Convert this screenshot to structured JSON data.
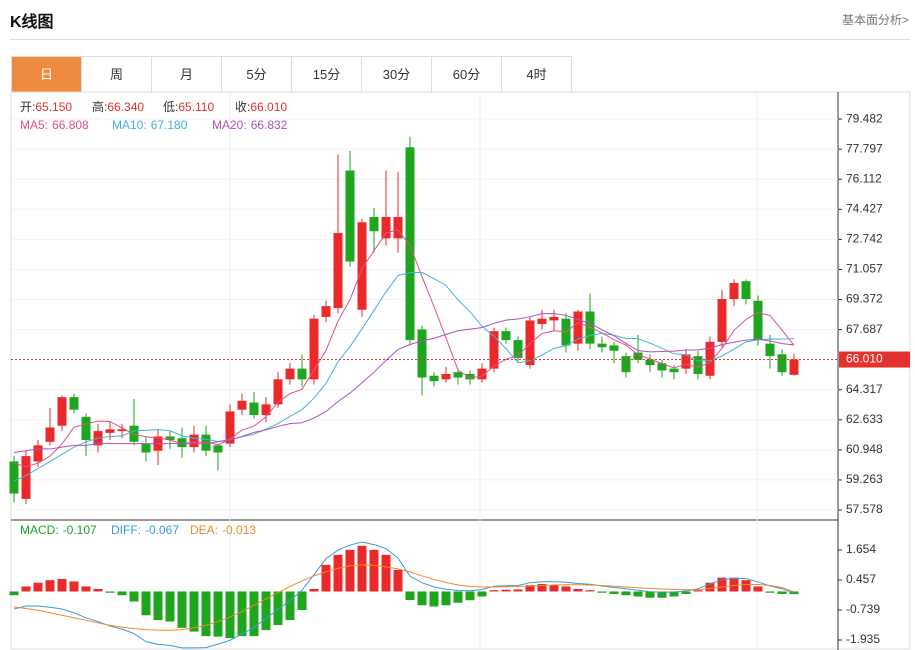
{
  "header": {
    "title": "K线图",
    "link": "基本面分析>"
  },
  "tabs": [
    {
      "label": "日",
      "active": true
    },
    {
      "label": "周",
      "active": false
    },
    {
      "label": "月",
      "active": false
    },
    {
      "label": "5分",
      "active": false
    },
    {
      "label": "15分",
      "active": false
    },
    {
      "label": "30分",
      "active": false
    },
    {
      "label": "60分",
      "active": false
    },
    {
      "label": "4时",
      "active": false
    }
  ],
  "chart_data": [
    {
      "type": "candlestick",
      "info": [
        {
          "name": "开:",
          "value": "65.150"
        },
        {
          "name": "高:",
          "value": "66.340"
        },
        {
          "name": "低:",
          "value": "65.110"
        },
        {
          "name": "收:",
          "value": "66.010"
        }
      ],
      "info_color": "#e3322e",
      "up_color": "#ea2a2a",
      "down_color": "#1fa61f",
      "open": [
        60.3,
        58.2,
        60.3,
        61.4,
        62.3,
        63.9,
        62.8,
        61.2,
        61.9,
        62.0,
        62.3,
        61.3,
        60.9,
        61.7,
        61.6,
        61.1,
        61.8,
        61.2,
        61.3,
        63.2,
        63.6,
        62.9,
        63.5,
        64.9,
        65.5,
        64.9,
        68.4,
        68.9,
        76.6,
        68.8,
        74.0,
        72.8,
        72.8,
        77.9,
        67.7,
        65.1,
        64.9,
        65.3,
        65.2,
        64.9,
        65.5,
        67.6,
        67.1,
        65.7,
        68.0,
        68.2,
        68.3,
        66.9,
        68.7,
        66.9,
        66.8,
        66.2,
        66.4,
        66.0,
        65.8,
        65.5,
        65.5,
        66.2,
        65.1,
        67.0,
        69.4,
        70.4,
        69.3,
        66.9,
        66.3,
        65.15
      ],
      "high": [
        60.6,
        60.9,
        61.5,
        63.3,
        64.0,
        64.1,
        63.0,
        62.4,
        62.5,
        62.4,
        63.8,
        61.7,
        62.1,
        62.0,
        62.2,
        62.3,
        62.3,
        61.3,
        63.5,
        64.1,
        64.2,
        63.9,
        65.3,
        65.8,
        66.3,
        68.5,
        69.3,
        77.5,
        77.7,
        73.9,
        74.5,
        76.6,
        76.5,
        78.5,
        67.9,
        65.3,
        65.6,
        65.5,
        65.4,
        65.8,
        67.8,
        67.8,
        67.3,
        68.4,
        68.8,
        68.8,
        68.6,
        68.8,
        69.7,
        67.3,
        67.0,
        66.4,
        67.4,
        66.3,
        66.0,
        65.7,
        66.6,
        66.5,
        67.3,
        69.9,
        70.5,
        70.5,
        69.6,
        67.4,
        66.6,
        66.34
      ],
      "low": [
        58.0,
        57.9,
        60.0,
        61.2,
        62.0,
        63.0,
        60.6,
        60.8,
        61.5,
        61.6,
        61.2,
        60.3,
        60.1,
        61.0,
        60.5,
        60.8,
        60.6,
        59.8,
        61.1,
        62.9,
        62.7,
        62.5,
        63.3,
        64.6,
        64.5,
        64.6,
        68.1,
        68.6,
        71.2,
        68.4,
        72.0,
        72.4,
        72.0,
        66.8,
        64.0,
        64.5,
        64.7,
        64.6,
        64.6,
        64.7,
        65.3,
        66.9,
        65.9,
        65.5,
        67.7,
        67.6,
        66.4,
        66.5,
        66.6,
        66.4,
        65.8,
        65.0,
        65.8,
        65.3,
        65.0,
        64.9,
        65.2,
        64.9,
        64.9,
        66.7,
        69.0,
        69.1,
        66.8,
        65.5,
        65.1,
        65.11
      ],
      "close": [
        58.5,
        60.6,
        61.2,
        62.2,
        63.9,
        63.2,
        61.5,
        62.0,
        62.1,
        62.1,
        61.4,
        60.8,
        61.7,
        61.5,
        61.1,
        61.8,
        60.9,
        60.8,
        63.1,
        63.7,
        62.9,
        63.5,
        64.9,
        65.5,
        64.9,
        68.3,
        69.0,
        73.1,
        71.5,
        73.7,
        73.2,
        74.0,
        74.0,
        67.1,
        65.0,
        64.8,
        65.2,
        65.0,
        64.9,
        65.5,
        67.6,
        67.1,
        66.1,
        68.2,
        68.3,
        68.4,
        66.8,
        68.7,
        66.9,
        66.7,
        66.5,
        65.3,
        66.0,
        65.7,
        65.4,
        65.3,
        66.3,
        65.2,
        67.0,
        69.4,
        70.3,
        69.4,
        67.1,
        66.2,
        65.3,
        66.01
      ],
      "series": [
        {
          "name": "MA5:",
          "label": "66.808",
          "color": "#e2508c",
          "values": [
            60.2,
            60.0,
            60.2,
            60.6,
            61.28,
            62.22,
            62.4,
            62.56,
            62.54,
            62.18,
            61.82,
            61.68,
            61.62,
            61.5,
            61.3,
            61.38,
            61.4,
            61.22,
            61.54,
            62.06,
            62.28,
            62.8,
            63.62,
            64.1,
            64.34,
            65.42,
            66.52,
            68.16,
            69.36,
            71.12,
            72.1,
            73.1,
            73.28,
            72.4,
            70.66,
            68.98,
            67.22,
            65.42,
            64.98,
            65.08,
            65.64,
            66.02,
            66.24,
            66.9,
            67.46,
            67.62,
            67.56,
            68.08,
            67.82,
            67.5,
            67.12,
            66.82,
            66.28,
            66.04,
            65.78,
            65.54,
            65.74,
            65.58,
            65.84,
            66.64,
            67.64,
            68.26,
            68.64,
            68.48,
            67.66,
            66.808
          ]
        },
        {
          "name": "MA10:",
          "label": "67.180",
          "color": "#3fb6d6",
          "values": [
            59.2,
            59.5,
            59.9,
            60.3,
            60.7,
            61.1,
            61.4,
            61.6,
            61.7,
            61.73,
            62.02,
            62.04,
            62.09,
            62.02,
            61.74,
            61.6,
            61.54,
            61.42,
            61.52,
            61.68,
            61.83,
            62.1,
            62.42,
            62.82,
            63.2,
            63.85,
            64.66,
            65.89,
            66.73,
            67.73,
            68.76,
            69.81,
            70.72,
            70.88,
            70.89,
            70.54,
            70.16,
            69.35,
            68.69,
            67.87,
            67.31,
            66.62,
            65.83,
            65.94,
            66.27,
            66.63,
            66.79,
            67.16,
            67.36,
            67.48,
            67.37,
            67.19,
            67.18,
            66.93,
            66.64,
            66.33,
            66.28,
            65.93,
            65.94,
            66.21,
            66.59,
            67.0,
            67.11,
            67.16,
            67.15,
            67.18
          ]
        },
        {
          "name": "MA20:",
          "label": "66.832",
          "color": "#b04fc6",
          "values": [
            60.8,
            60.9,
            61.0,
            61.0,
            61.1,
            61.2,
            61.2,
            61.3,
            61.3,
            61.3,
            61.3,
            61.3,
            61.3,
            61.3,
            61.3,
            61.3,
            61.3,
            61.4,
            61.5,
            61.7,
            61.93,
            62.07,
            62.26,
            62.42,
            62.47,
            62.73,
            63.1,
            63.66,
            64.13,
            64.71,
            65.3,
            65.96,
            66.57,
            66.85,
            67.05,
            67.2,
            67.41,
            67.62,
            67.71,
            67.8,
            68.04,
            68.22,
            68.28,
            68.41,
            68.58,
            68.59,
            68.48,
            68.26,
            68.03,
            67.68,
            67.34,
            66.91,
            66.51,
            66.44,
            66.46,
            66.48,
            66.54,
            66.55,
            66.65,
            66.85,
            66.98,
            67.1,
            67.15,
            67.05,
            66.9,
            66.832
          ]
        }
      ],
      "last_price": {
        "value": 66.01,
        "label": "66.010"
      },
      "ylim": [
        57.13,
        81.0
      ],
      "yticks": [
        79.482,
        77.797,
        76.112,
        74.427,
        72.742,
        71.057,
        69.372,
        67.687,
        64.317,
        62.633,
        60.948,
        59.263,
        57.578
      ],
      "grid": true
    },
    {
      "type": "macd",
      "up_color": "#ea2a2a",
      "down_color": "#1fa61f",
      "series": [
        {
          "name": "MACD:",
          "label": "-0.107",
          "color": "#1f9f33",
          "kind": "bar",
          "values": [
            -0.15,
            0.2,
            0.35,
            0.45,
            0.5,
            0.4,
            0.2,
            0.1,
            -0.05,
            -0.15,
            -0.4,
            -0.95,
            -1.14,
            -1.2,
            -1.45,
            -1.6,
            -1.78,
            -1.8,
            -1.86,
            -1.78,
            -1.78,
            -1.54,
            -1.34,
            -1.14,
            -0.74,
            0.1,
            1.06,
            1.46,
            1.66,
            1.82,
            1.66,
            1.46,
            0.86,
            -0.34,
            -0.55,
            -0.6,
            -0.55,
            -0.45,
            -0.35,
            -0.2,
            0.05,
            0.07,
            0.08,
            0.25,
            0.3,
            0.25,
            0.2,
            0.1,
            0.05,
            -0.05,
            -0.1,
            -0.15,
            -0.2,
            -0.25,
            -0.25,
            -0.2,
            -0.1,
            0.05,
            0.35,
            0.55,
            0.55,
            0.45,
            0.2,
            -0.05,
            -0.1,
            -0.107
          ]
        },
        {
          "name": "DIFF:",
          "label": "-0.067",
          "color": "#3a9ad9",
          "kind": "line",
          "values": [
            -0.7,
            -0.58,
            -0.58,
            -0.63,
            -0.7,
            -0.85,
            -1.05,
            -1.2,
            -1.38,
            -1.5,
            -1.68,
            -2.0,
            -2.11,
            -2.15,
            -2.25,
            -2.25,
            -2.24,
            -2.1,
            -1.95,
            -1.69,
            -1.44,
            -1.07,
            -0.72,
            -0.37,
            0.05,
            0.67,
            1.31,
            1.65,
            1.85,
            1.97,
            1.87,
            1.71,
            1.33,
            0.61,
            0.35,
            0.18,
            0.09,
            0.04,
            0.03,
            0.08,
            0.21,
            0.23,
            0.24,
            0.35,
            0.39,
            0.39,
            0.37,
            0.32,
            0.29,
            0.22,
            0.16,
            0.11,
            0.05,
            -0.01,
            -0.03,
            -0.02,
            0.02,
            0.11,
            0.3,
            0.46,
            0.52,
            0.51,
            0.38,
            0.22,
            0.11,
            -0.067
          ]
        },
        {
          "name": "DEA:",
          "label": "-0.013",
          "color": "#f08a24",
          "kind": "line",
          "values": [
            -0.62,
            -0.68,
            -0.75,
            -0.85,
            -0.95,
            -1.05,
            -1.15,
            -1.25,
            -1.35,
            -1.42,
            -1.48,
            -1.52,
            -1.54,
            -1.55,
            -1.52,
            -1.45,
            -1.35,
            -1.2,
            -1.02,
            -0.8,
            -0.55,
            -0.3,
            -0.05,
            0.2,
            0.42,
            0.62,
            0.78,
            0.92,
            1.02,
            1.06,
            1.04,
            0.98,
            0.9,
            0.78,
            0.62,
            0.48,
            0.36,
            0.26,
            0.2,
            0.18,
            0.18,
            0.19,
            0.2,
            0.22,
            0.24,
            0.26,
            0.27,
            0.27,
            0.26,
            0.24,
            0.21,
            0.18,
            0.15,
            0.12,
            0.1,
            0.08,
            0.07,
            0.08,
            0.12,
            0.18,
            0.24,
            0.28,
            0.28,
            0.24,
            0.16,
            -0.013
          ]
        }
      ],
      "ylim": [
        -2.334,
        2.85
      ],
      "yticks": [
        1.654,
        0.457,
        -0.739,
        -1.935
      ]
    }
  ]
}
